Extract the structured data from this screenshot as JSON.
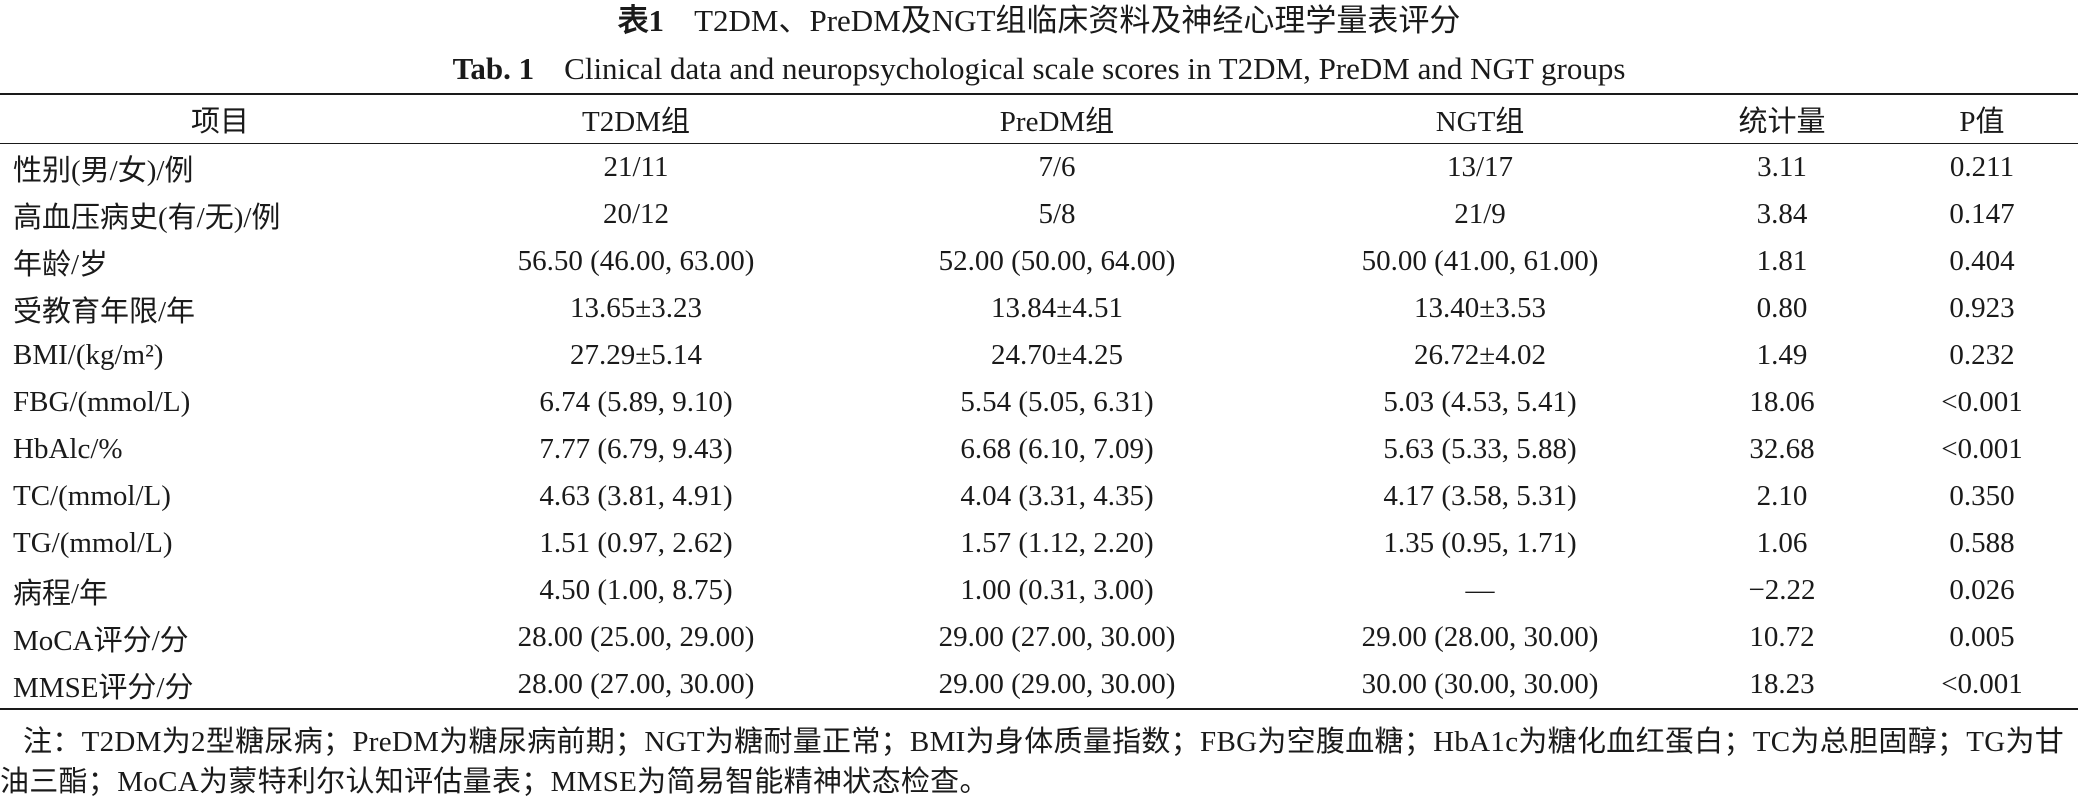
{
  "caption": {
    "label_cn": "表1",
    "title_cn": "T2DM、PreDM及NGT组临床资料及神经心理学量表评分",
    "label_en": "Tab. 1",
    "title_en": "Clinical data and neuropsychological scale scores in T2DM, PreDM and NGT groups"
  },
  "table": {
    "columns": [
      "项目",
      "T2DM组",
      "PreDM组",
      "NGT组",
      "统计量",
      "P值"
    ],
    "rows": [
      [
        "性别(男/女)/例",
        "21/11",
        "7/6",
        "13/17",
        "3.11",
        "0.211"
      ],
      [
        "高血压病史(有/无)/例",
        "20/12",
        "5/8",
        "21/9",
        "3.84",
        "0.147"
      ],
      [
        "年龄/岁",
        "56.50 (46.00, 63.00)",
        "52.00 (50.00, 64.00)",
        "50.00 (41.00, 61.00)",
        "1.81",
        "0.404"
      ],
      [
        "受教育年限/年",
        "13.65±3.23",
        "13.84±4.51",
        "13.40±3.53",
        "0.80",
        "0.923"
      ],
      [
        "BMI/(kg/m²)",
        "27.29±5.14",
        "24.70±4.25",
        "26.72±4.02",
        "1.49",
        "0.232"
      ],
      [
        "FBG/(mmol/L)",
        "6.74 (5.89, 9.10)",
        "5.54 (5.05, 6.31)",
        "5.03 (4.53, 5.41)",
        "18.06",
        "<0.001"
      ],
      [
        "HbAlc/%",
        "7.77 (6.79, 9.43)",
        "6.68 (6.10, 7.09)",
        "5.63 (5.33, 5.88)",
        "32.68",
        "<0.001"
      ],
      [
        "TC/(mmol/L)",
        "4.63 (3.81, 4.91)",
        "4.04 (3.31, 4.35)",
        "4.17 (3.58, 5.31)",
        "2.10",
        "0.350"
      ],
      [
        "TG/(mmol/L)",
        "1.51 (0.97, 2.62)",
        "1.57 (1.12, 2.20)",
        "1.35 (0.95, 1.71)",
        "1.06",
        "0.588"
      ],
      [
        "病程/年",
        "4.50 (1.00, 8.75)",
        "1.00 (0.31, 3.00)",
        "—",
        "−2.22",
        "0.026"
      ],
      [
        "MoCA评分/分",
        "28.00 (25.00, 29.00)",
        "29.00 (27.00, 30.00)",
        "29.00 (28.00, 30.00)",
        "10.72",
        "0.005"
      ],
      [
        "MMSE评分/分",
        "28.00 (27.00, 30.00)",
        "29.00 (29.00, 30.00)",
        "30.00 (30.00, 30.00)",
        "18.23",
        "<0.001"
      ]
    ]
  },
  "note": "注：T2DM为2型糖尿病；PreDM为糖尿病前期；NGT为糖耐量正常；BMI为身体质量指数；FBG为空腹血糖；HbA1c为糖化血红蛋白；TC为总胆固醇；TG为甘油三酯；MoCA为蒙特利尔认知评估量表；MMSE为简易智能精神状态检查。"
}
